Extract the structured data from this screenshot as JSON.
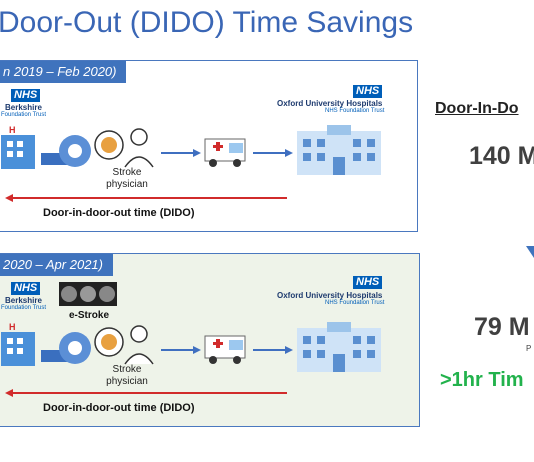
{
  "title": "Door-Out (DIDO) Time Savings",
  "panel1": {
    "period": "n 2019 – Feb 2020)",
    "left_nhs": "NHS",
    "left_org": "Berkshire",
    "left_trust": "Foundation Trust",
    "right_nhs": "NHS",
    "right_org": "Oxford University Hospitals",
    "right_trust": "NHS Foundation Trust",
    "stroke_label_line1": "Stroke",
    "stroke_label_line2": "physician",
    "dido_label": "Door-in-door-out time (DIDO)"
  },
  "panel2": {
    "period": "2020 – Apr 2021)",
    "left_nhs": "NHS",
    "left_org": "Berkshire",
    "left_trust": "Foundation Trust",
    "estroke_label": "e-Stroke",
    "right_nhs": "NHS",
    "right_org": "Oxford University Hospitals",
    "right_trust": "NHS Foundation Trust",
    "stroke_label_line1": "Stroke",
    "stroke_label_line2": "physician",
    "dido_label": "Door-in-door-out time (DIDO)"
  },
  "right": {
    "heading": "Door-In-Do",
    "before_time": "140 M",
    "after_time": "79 M",
    "after_sub": "P",
    "savings": ">1hr Tim"
  },
  "colors": {
    "title": "#3a66b5",
    "panel_border": "#4a78bf",
    "tag_bg": "#3f73bd",
    "nhs_blue": "#005eb8",
    "arrow_blue": "#3f6fc0",
    "dido_red": "#d12b2b",
    "savings_green": "#22b24c"
  }
}
